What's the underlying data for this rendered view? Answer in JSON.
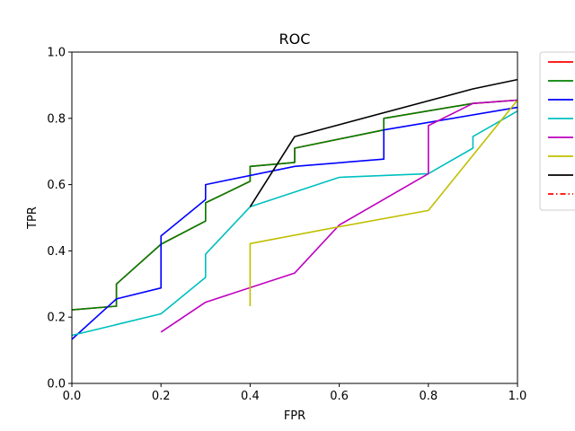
{
  "chart_data": {
    "type": "line",
    "title": "ROC",
    "xlabel": "FPR",
    "ylabel": "TPR",
    "xlim": [
      0,
      1
    ],
    "ylim": [
      0,
      1
    ],
    "xticks": [
      "0.0",
      "0.2",
      "0.4",
      "0.6",
      "0.8",
      "1.0"
    ],
    "yticks": [
      "0.0",
      "0.2",
      "0.4",
      "0.6",
      "0.8",
      "1.0"
    ],
    "grid": false,
    "legend": {
      "placement": "outside-top-right",
      "entries_with_text": false
    },
    "series": [
      {
        "color": "#ff0000",
        "style": "solid",
        "x": [
          0.0,
          0.1,
          0.1,
          0.2,
          0.3,
          0.3,
          0.4,
          0.4,
          0.5,
          0.5,
          0.7,
          0.7,
          0.9,
          1.0
        ],
        "y": [
          0.222,
          0.233,
          0.3,
          0.42,
          0.49,
          0.545,
          0.61,
          0.655,
          0.667,
          0.71,
          0.765,
          0.8,
          0.845,
          0.855
        ]
      },
      {
        "color": "#008000",
        "style": "solid",
        "x": [
          0.0,
          0.1,
          0.1,
          0.2,
          0.3,
          0.3,
          0.4,
          0.4,
          0.5,
          0.5,
          0.7,
          0.7,
          0.9,
          1.0
        ],
        "y": [
          0.222,
          0.233,
          0.3,
          0.42,
          0.49,
          0.545,
          0.61,
          0.655,
          0.667,
          0.71,
          0.765,
          0.8,
          0.845,
          0.855
        ]
      },
      {
        "color": "#0000ff",
        "style": "solid",
        "x": [
          0.0,
          0.1,
          0.2,
          0.2,
          0.3,
          0.3,
          0.5,
          0.7,
          0.7,
          1.0
        ],
        "y": [
          0.133,
          0.255,
          0.288,
          0.445,
          0.555,
          0.6,
          0.655,
          0.677,
          0.765,
          0.833
        ]
      },
      {
        "color": "#00bfbf",
        "style": "solid",
        "x": [
          0.0,
          0.2,
          0.3,
          0.3,
          0.4,
          0.6,
          0.8,
          0.9,
          0.9,
          1.0
        ],
        "y": [
          0.145,
          0.21,
          0.32,
          0.39,
          0.533,
          0.622,
          0.633,
          0.71,
          0.745,
          0.822
        ]
      },
      {
        "color": "#bf00bf",
        "style": "solid",
        "x": [
          0.2,
          0.3,
          0.5,
          0.6,
          0.8,
          0.8,
          0.9,
          1.0
        ],
        "y": [
          0.155,
          0.245,
          0.333,
          0.478,
          0.633,
          0.778,
          0.845,
          0.855
        ]
      },
      {
        "color": "#bfbf00",
        "style": "solid",
        "x": [
          0.4,
          0.4,
          0.6,
          0.8,
          1.0
        ],
        "y": [
          0.233,
          0.422,
          0.473,
          0.522,
          0.855
        ]
      },
      {
        "color": "#000000",
        "style": "solid",
        "x": [
          0.4,
          0.5,
          0.9,
          1.0
        ],
        "y": [
          0.533,
          0.745,
          0.889,
          0.917
        ]
      },
      {
        "color": "#ff0000",
        "style": "dashdot",
        "x": [],
        "y": []
      }
    ]
  }
}
